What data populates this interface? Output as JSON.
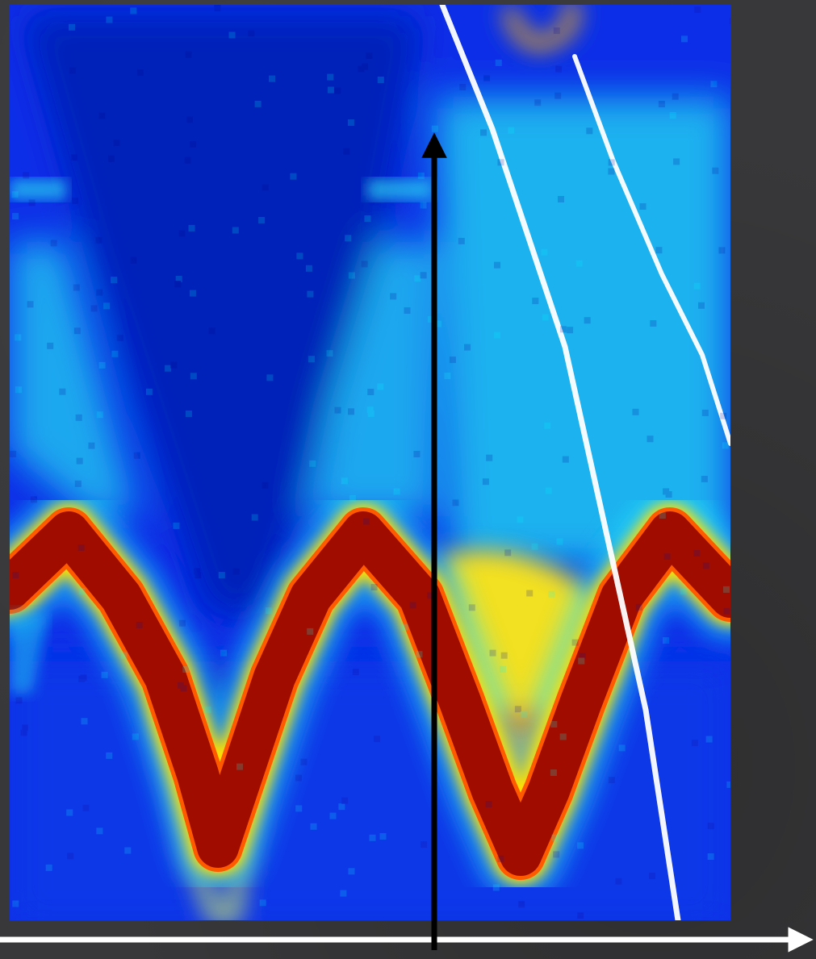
{
  "chart_data": {
    "type": "heatmap",
    "title": "",
    "xlabel": "",
    "ylabel": "",
    "colormap": [
      "#00008f",
      "#0000ff",
      "#0080ff",
      "#00ffff",
      "#80ff80",
      "#ffff00",
      "#ff8000",
      "#ff0000",
      "#800000"
    ],
    "axes": {
      "x_axis_color": "#ffffff",
      "y_axis_color": "#000000",
      "arrowheads": true
    },
    "features": [
      {
        "name": "",
        "kind": "oscillating band",
        "color": "#a01000",
        "periods_visible": 2.5
      },
      {
        "name": "",
        "kind": "diagonal line",
        "color": "#ffffff"
      },
      {
        "name": "",
        "kind": "diagonal line",
        "color": "#ffffff"
      }
    ]
  }
}
